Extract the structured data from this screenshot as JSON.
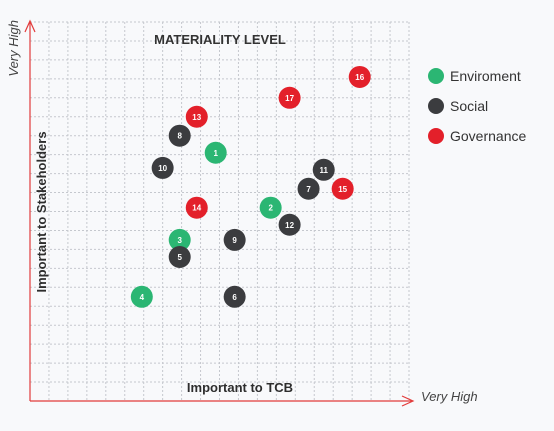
{
  "chart_data": {
    "type": "scatter",
    "title": "MATERIALITY LEVEL",
    "xlabel": "Important to TCB",
    "ylabel": "Important to Stakeholders",
    "x_end_label": "Very High",
    "y_end_label": "Very High",
    "xlim": [
      0,
      20
    ],
    "ylim": [
      0,
      20
    ],
    "grid": true,
    "legend_position": "right",
    "series": [
      {
        "name": "Enviroment",
        "color": "#2bb673",
        "points": [
          {
            "label": "1",
            "x": 9.8,
            "y": 13.1
          },
          {
            "label": "2",
            "x": 12.7,
            "y": 10.2
          },
          {
            "label": "3",
            "x": 7.9,
            "y": 8.5
          },
          {
            "label": "4",
            "x": 5.9,
            "y": 5.5
          }
        ]
      },
      {
        "name": "Social",
        "color": "#3b3c3f",
        "points": [
          {
            "label": "5",
            "x": 7.9,
            "y": 7.6
          },
          {
            "label": "6",
            "x": 10.8,
            "y": 5.5
          },
          {
            "label": "7",
            "x": 14.7,
            "y": 11.2
          },
          {
            "label": "8",
            "x": 7.9,
            "y": 14.0
          },
          {
            "label": "9",
            "x": 10.8,
            "y": 8.5
          },
          {
            "label": "10",
            "x": 7.0,
            "y": 12.3
          },
          {
            "label": "11",
            "x": 15.5,
            "y": 12.2
          },
          {
            "label": "12",
            "x": 13.7,
            "y": 9.3
          }
        ]
      },
      {
        "name": "Governance",
        "color": "#e3202a",
        "points": [
          {
            "label": "13",
            "x": 8.8,
            "y": 15.0
          },
          {
            "label": "14",
            "x": 8.8,
            "y": 10.2
          },
          {
            "label": "15",
            "x": 16.5,
            "y": 11.2
          },
          {
            "label": "16",
            "x": 17.4,
            "y": 17.1
          },
          {
            "label": "17",
            "x": 13.7,
            "y": 16.0
          }
        ]
      }
    ]
  }
}
